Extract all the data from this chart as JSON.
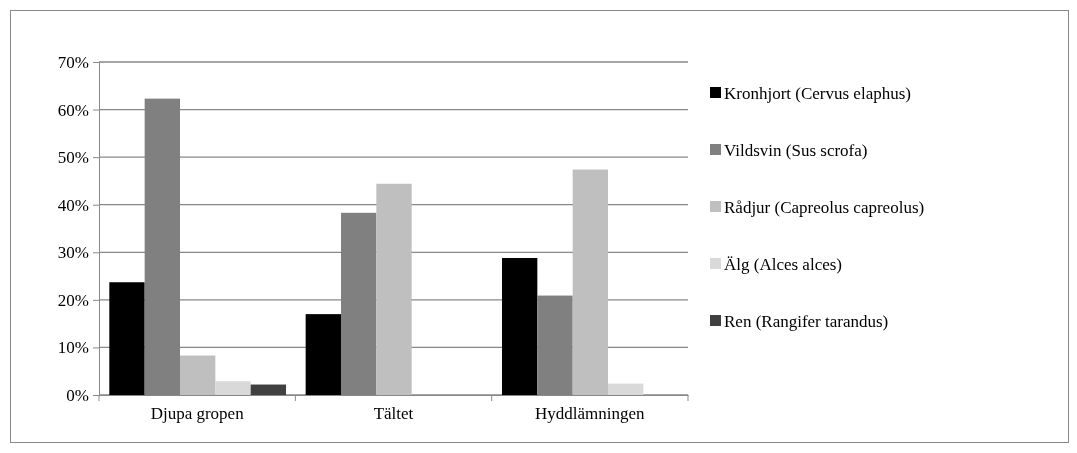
{
  "chart_data": {
    "type": "bar",
    "categories": [
      "Djupa gropen",
      "Tältet",
      "Hyddlämningen"
    ],
    "series": [
      {
        "name": "Kronhjort (Cervus elaphus)",
        "color": "#000000",
        "values": [
          23.7,
          17.0,
          28.8
        ]
      },
      {
        "name": "Vildsvin (Sus scrofa)",
        "color": "#808080",
        "values": [
          62.3,
          38.3,
          20.9
        ]
      },
      {
        "name": "Rådjur (Capreolus capreolus)",
        "color": "#bfbfbf",
        "values": [
          8.3,
          44.4,
          47.4
        ]
      },
      {
        "name": "Älg (Alces alces)",
        "color": "#d9d9d9",
        "values": [
          2.9,
          null,
          2.4
        ]
      },
      {
        "name": "Ren (Rangifer tarandus)",
        "color": "#404040",
        "values": [
          2.2,
          null,
          null
        ]
      }
    ],
    "ylim": [
      0,
      70
    ],
    "yticks": [
      {
        "value": 0,
        "label": "0%"
      },
      {
        "value": 10,
        "label": "10%"
      },
      {
        "value": 20,
        "label": "20%"
      },
      {
        "value": 30,
        "label": "30%"
      },
      {
        "value": 40,
        "label": "40%"
      },
      {
        "value": 50,
        "label": "50%"
      },
      {
        "value": 60,
        "label": "60%"
      },
      {
        "value": 70,
        "label": "70%"
      }
    ],
    "grid": "y",
    "legend": "right"
  }
}
